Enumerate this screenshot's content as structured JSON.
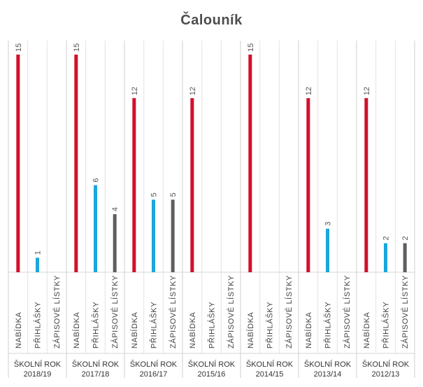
{
  "title": "Čalouník",
  "chart_data": {
    "type": "bar",
    "title": "Čalouník",
    "series_labels": [
      "NABÍDKA",
      "PŘIHLÁŠKY",
      "ZÁPISOVÉ LÍSTKY"
    ],
    "groups": [
      {
        "line1": "ŠKOLNÍ ROK",
        "line2": "2018/19",
        "values": [
          15,
          1,
          null
        ]
      },
      {
        "line1": "ŠKOLNÍ ROK",
        "line2": "2017/18",
        "values": [
          15,
          6,
          4
        ]
      },
      {
        "line1": "ŠKOLNÍ ROK",
        "line2": "2016/17",
        "values": [
          12,
          5,
          5
        ]
      },
      {
        "line1": "ŠKOLNÍ ROK",
        "line2": "2015/16",
        "values": [
          12,
          null,
          null
        ]
      },
      {
        "line1": "ŠKOLNÍ ROK",
        "line2": "2014/15",
        "values": [
          15,
          null,
          null
        ]
      },
      {
        "line1": "ŠKOLNÍ ROK",
        "line2": "2013/14",
        "values": [
          12,
          3,
          null
        ]
      },
      {
        "line1": "ŠKOLNÍ ROK",
        "line2": "2012/13",
        "values": [
          12,
          2,
          2
        ]
      }
    ],
    "ylim": [
      0,
      15
    ],
    "colors": [
      "#d0112b",
      "#1aa7dc",
      "#5e5e5e"
    ],
    "grid": true
  }
}
